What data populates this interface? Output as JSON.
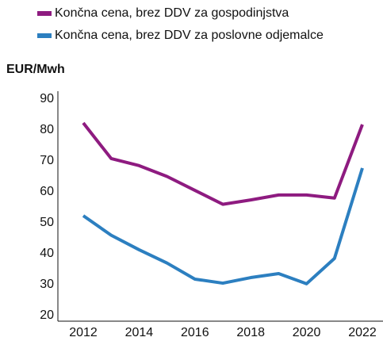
{
  "chart_data": {
    "type": "line",
    "y_label": "EUR/Mwh",
    "x": [
      2012,
      2013,
      2014,
      2015,
      2016,
      2017,
      2018,
      2019,
      2020,
      2021,
      2022
    ],
    "series": [
      {
        "name": "Končna cena, brez DDV za gospodinjstva",
        "color": "#8e1b80",
        "values": [
          82.3,
          70.8,
          68.5,
          65,
          60.5,
          56,
          57.4,
          59,
          59,
          58,
          81.8
        ]
      },
      {
        "name": "Končna cena, brez DDV za poslovne odjemalce",
        "color": "#2c7fc0",
        "values": [
          52.3,
          46,
          41.3,
          37,
          31.8,
          30.5,
          32.3,
          33.6,
          30.3,
          38.5,
          67.7
        ]
      }
    ],
    "xlim": [
      2011,
      2023
    ],
    "xticks": [
      2012,
      2014,
      2016,
      2018,
      2020,
      2022
    ],
    "ylim": [
      20,
      90
    ],
    "yticks": [
      20,
      30,
      40,
      50,
      60,
      70,
      80,
      90
    ],
    "legend": "top-left",
    "grid": false
  }
}
